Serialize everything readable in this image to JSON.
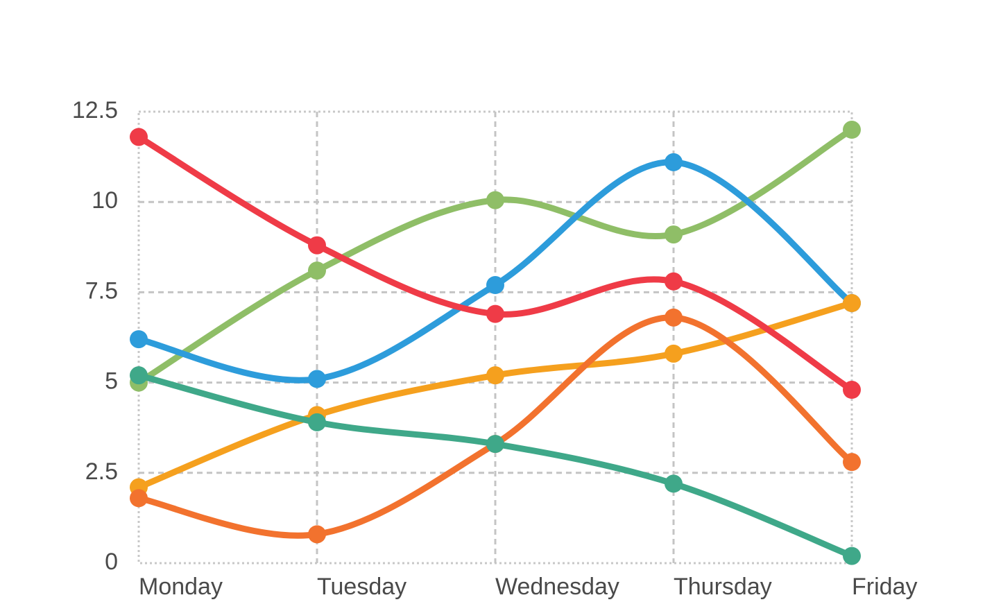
{
  "chart_data": {
    "type": "line",
    "title": "",
    "xlabel": "",
    "ylabel": "",
    "categories": [
      "Monday",
      "Tuesday",
      "Wednesday",
      "Thursday",
      "Friday"
    ],
    "ylim": [
      0,
      12.5
    ],
    "yticks": [
      "0",
      "2.5",
      "5",
      "7.5",
      "10",
      "12.5"
    ],
    "grid": true,
    "smooth": true,
    "series": [
      {
        "color": "#8fbe67",
        "values": [
          5.0,
          8.1,
          10.05,
          9.1,
          12.0
        ]
      },
      {
        "color": "#2d9cdb",
        "values": [
          6.2,
          5.1,
          7.7,
          11.1,
          7.2
        ]
      },
      {
        "color": "#f5a01e",
        "values": [
          2.1,
          4.1,
          5.2,
          5.8,
          7.2
        ]
      },
      {
        "color": "#f2722e",
        "values": [
          1.8,
          0.8,
          3.3,
          6.8,
          2.8
        ]
      },
      {
        "color": "#ef3b47",
        "values": [
          11.8,
          8.8,
          6.9,
          7.8,
          4.8
        ]
      },
      {
        "color": "#3fa889",
        "values": [
          5.2,
          3.9,
          3.3,
          2.2,
          0.2
        ]
      }
    ]
  }
}
